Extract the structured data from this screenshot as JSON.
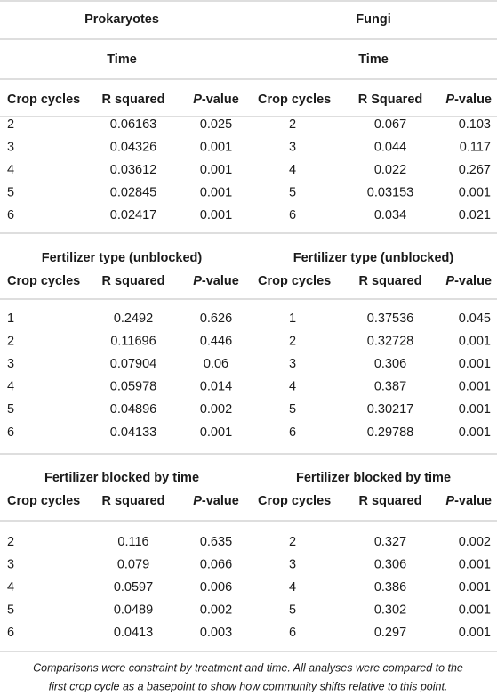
{
  "header": {
    "left": "Prokaryotes",
    "right": "Fungi"
  },
  "sections": [
    {
      "left_title": "Time",
      "right_title": "Time",
      "prokaryotes": {
        "columns": [
          "Crop cycles",
          "R squared",
          "P-value"
        ],
        "rows": [
          [
            "2",
            "0.06163",
            "0.025"
          ],
          [
            "3",
            "0.04326",
            "0.001"
          ],
          [
            "4",
            "0.03612",
            "0.001"
          ],
          [
            "5",
            "0.02845",
            "0.001"
          ],
          [
            "6",
            "0.02417",
            "0.001"
          ]
        ]
      },
      "fungi": {
        "columns": [
          "Crop cycles",
          "R Squared",
          "P-value"
        ],
        "rows": [
          [
            "2",
            "0.067",
            "0.103"
          ],
          [
            "3",
            "0.044",
            "0.117"
          ],
          [
            "4",
            "0.022",
            "0.267"
          ],
          [
            "5",
            "0.03153",
            "0.001"
          ],
          [
            "6",
            "0.034",
            "0.021"
          ]
        ]
      }
    },
    {
      "left_title": "Fertilizer type (unblocked)",
      "right_title": "Fertilizer type (unblocked)",
      "prokaryotes": {
        "columns": [
          "Crop cycles",
          "R squared",
          "P-value"
        ],
        "rows": [
          [
            "1",
            "0.2492",
            "0.626"
          ],
          [
            "2",
            "0.11696",
            "0.446"
          ],
          [
            "3",
            "0.07904",
            "0.06"
          ],
          [
            "4",
            "0.05978",
            "0.014"
          ],
          [
            "5",
            "0.04896",
            "0.002"
          ],
          [
            "6",
            "0.04133",
            "0.001"
          ]
        ]
      },
      "fungi": {
        "columns": [
          "Crop cycles",
          "R squared",
          "P-value"
        ],
        "rows": [
          [
            "1",
            "0.37536",
            "0.045"
          ],
          [
            "2",
            "0.32728",
            "0.001"
          ],
          [
            "3",
            "0.306",
            "0.001"
          ],
          [
            "4",
            "0.387",
            "0.001"
          ],
          [
            "5",
            "0.30217",
            "0.001"
          ],
          [
            "6",
            "0.29788",
            "0.001"
          ]
        ]
      }
    },
    {
      "left_title": "Fertilizer blocked by time",
      "right_title": "Fertilizer blocked by time",
      "prokaryotes": {
        "columns": [
          "Crop cycles",
          "R squared",
          "P-value"
        ],
        "rows": [
          [
            "2",
            "0.116",
            "0.635"
          ],
          [
            "3",
            "0.079",
            "0.066"
          ],
          [
            "4",
            "0.0597",
            "0.006"
          ],
          [
            "5",
            "0.0489",
            "0.002"
          ],
          [
            "6",
            "0.0413",
            "0.003"
          ]
        ]
      },
      "fungi": {
        "columns": [
          "Crop cycles",
          "R squared",
          "P-value"
        ],
        "rows": [
          [
            "2",
            "0.327",
            "0.002"
          ],
          [
            "3",
            "0.306",
            "0.001"
          ],
          [
            "4",
            "0.386",
            "0.001"
          ],
          [
            "5",
            "0.302",
            "0.001"
          ],
          [
            "6",
            "0.297",
            "0.001"
          ]
        ]
      }
    }
  ],
  "footnote": [
    "Comparisons were constraint by treatment and time. All analyses were compared to the",
    "first crop cycle as a basepoint to show how community shifts relative to this point."
  ]
}
